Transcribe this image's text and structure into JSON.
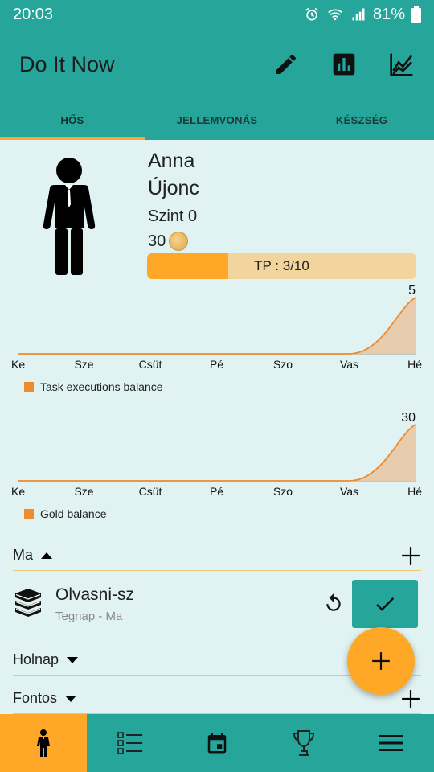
{
  "status": {
    "time": "20:03",
    "battery": "81%"
  },
  "app": {
    "title": "Do It Now"
  },
  "icons": {
    "edit": "pencil-icon",
    "stats": "bar-chart-icon",
    "trend": "line-chart-icon"
  },
  "tabs": [
    {
      "label": "HŐS",
      "active": true
    },
    {
      "label": "JELLEMVONÁS",
      "active": false
    },
    {
      "label": "KÉSZSÉG",
      "active": false
    }
  ],
  "hero": {
    "name": "Anna",
    "rank": "Újonc",
    "level": "Szint 0",
    "gold": "30",
    "xp_label": "TP : 3/10",
    "xp_fraction": 0.3
  },
  "chart_data": [
    {
      "type": "area",
      "categories": [
        "Ke",
        "Sze",
        "Csüt",
        "Pé",
        "Szo",
        "Vas",
        "Hé"
      ],
      "series": [
        {
          "name": "Task executions balance",
          "values": [
            0,
            0,
            0,
            0,
            0,
            0,
            5
          ]
        }
      ],
      "max_label": "5",
      "color": "#f08a2a"
    },
    {
      "type": "area",
      "categories": [
        "Ke",
        "Sze",
        "Csüt",
        "Pé",
        "Szo",
        "Vas",
        "Hé"
      ],
      "series": [
        {
          "name": "Gold balance",
          "values": [
            0,
            0,
            0,
            0,
            0,
            0,
            30
          ]
        }
      ],
      "max_label": "30",
      "color": "#f08a2a"
    }
  ],
  "sections": {
    "today": {
      "label": "Ma"
    },
    "tomorrow": {
      "label": "Holnap"
    },
    "important": {
      "label": "Fontos"
    }
  },
  "task": {
    "name": "Olvasni-sz",
    "sub": "Tegnap - Ma"
  },
  "bottom_nav": [
    "hero-icon",
    "list-icon",
    "calendar-icon",
    "trophy-icon",
    "menu-icon"
  ]
}
